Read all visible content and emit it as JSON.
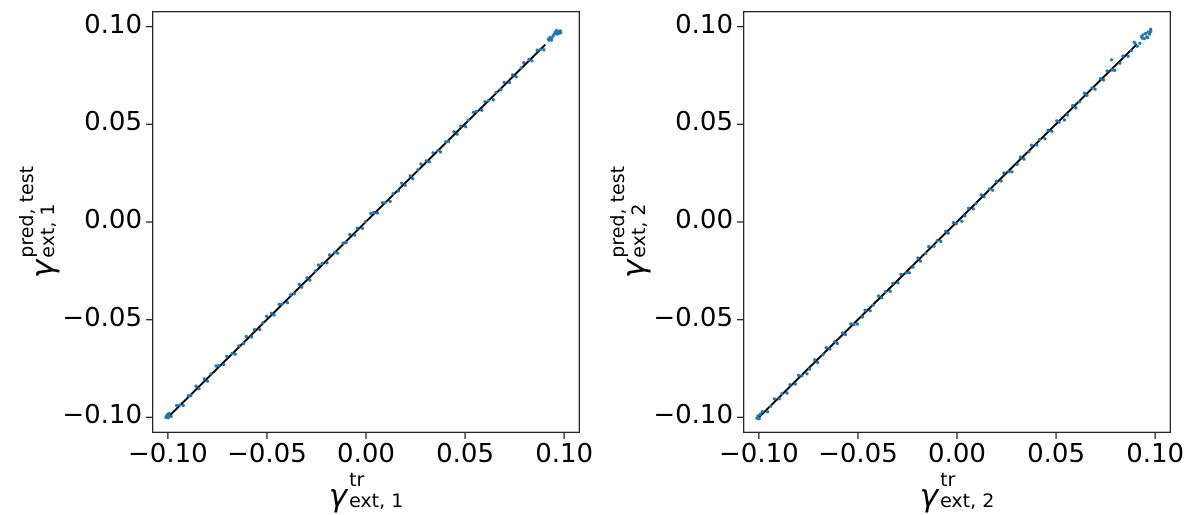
{
  "figure": {
    "background": "#ffffff"
  },
  "chart_data": [
    {
      "type": "scatter",
      "title": "",
      "xlabel": {
        "symbol": "γ",
        "sup": "tr",
        "sub": "ext, 1"
      },
      "ylabel": {
        "symbol": "γ",
        "sup": "pred, test",
        "sub": "ext, 1"
      },
      "xlim": [
        -0.108,
        0.108
      ],
      "ylim": [
        -0.108,
        0.108
      ],
      "grid": false,
      "legend": null,
      "xticks": [
        -0.1,
        -0.05,
        0.0,
        0.05,
        0.1
      ],
      "xtick_labels": [
        "−0.10",
        "−0.05",
        "0.00",
        "0.05",
        "0.10"
      ],
      "yticks": [
        -0.1,
        -0.05,
        0.0,
        0.05,
        0.1
      ],
      "ytick_labels": [
        "−0.10",
        "−0.05",
        "0.00",
        "0.05",
        "0.10"
      ],
      "axes_color": "#262626",
      "marker": {
        "color": "#1f77b4",
        "radius": 1.6
      },
      "line": {
        "color": "#000000",
        "width": 2,
        "endpoints": [
          [
            -1005,
            -1005
          ],
          [
            905,
            908
          ]
        ]
      },
      "points_scale": 0.0001,
      "points": [
        [
          -998,
          -989
        ],
        [
          -983,
          -995
        ],
        [
          -956,
          -940
        ],
        [
          -940,
          -937
        ],
        [
          -922,
          -939
        ],
        [
          -897,
          -889
        ],
        [
          -884,
          -889
        ],
        [
          -858,
          -840
        ],
        [
          -843,
          -853
        ],
        [
          -816,
          -803
        ],
        [
          -800,
          -815
        ],
        [
          -782,
          -777
        ],
        [
          -757,
          -737
        ],
        [
          -744,
          -735
        ],
        [
          -718,
          -730
        ],
        [
          -703,
          -687
        ],
        [
          -676,
          -673
        ],
        [
          -660,
          -677
        ],
        [
          -642,
          -634
        ],
        [
          -617,
          -622
        ],
        [
          -604,
          -586
        ],
        [
          -578,
          -588
        ],
        [
          -563,
          -550
        ],
        [
          -536,
          -551
        ],
        [
          -520,
          -515
        ],
        [
          -502,
          -482
        ],
        [
          -477,
          -468
        ],
        [
          -464,
          -476
        ],
        [
          -438,
          -422
        ],
        [
          -423,
          -420
        ],
        [
          -396,
          -413
        ],
        [
          -380,
          -372
        ],
        [
          -362,
          -367
        ],
        [
          -337,
          -319
        ],
        [
          -324,
          -334
        ],
        [
          -298,
          -285
        ],
        [
          -283,
          -298
        ],
        [
          -256,
          -251
        ],
        [
          -240,
          -220
        ],
        [
          -222,
          -213
        ],
        [
          -197,
          -209
        ],
        [
          -184,
          -168
        ],
        [
          -158,
          -155
        ],
        [
          -143,
          -160
        ],
        [
          -116,
          -108
        ],
        [
          -100,
          -105
        ],
        [
          -82,
          -64
        ],
        [
          -57,
          -67
        ],
        [
          -44,
          -31
        ],
        [
          -18,
          -33
        ],
        [
          -3,
          2
        ],
        [
          24,
          44
        ],
        [
          40,
          49
        ],
        [
          58,
          46
        ],
        [
          83,
          99
        ],
        [
          96,
          99
        ],
        [
          122,
          105
        ],
        [
          137,
          145
        ],
        [
          164,
          159
        ],
        [
          180,
          198
        ],
        [
          198,
          188
        ],
        [
          223,
          236
        ],
        [
          236,
          221
        ],
        [
          262,
          267
        ],
        [
          277,
          297
        ],
        [
          304,
          313
        ],
        [
          320,
          308
        ],
        [
          338,
          354
        ],
        [
          363,
          366
        ],
        [
          376,
          359
        ],
        [
          402,
          410
        ],
        [
          417,
          412
        ],
        [
          444,
          462
        ],
        [
          460,
          450
        ],
        [
          478,
          491
        ],
        [
          503,
          488
        ],
        [
          516,
          521
        ],
        [
          542,
          562
        ],
        [
          557,
          566
        ],
        [
          584,
          572
        ],
        [
          600,
          616
        ],
        [
          618,
          621
        ],
        [
          643,
          626
        ],
        [
          656,
          664
        ],
        [
          682,
          677
        ],
        [
          697,
          715
        ],
        [
          724,
          714
        ],
        [
          740,
          753
        ],
        [
          758,
          743
        ],
        [
          783,
          788
        ],
        [
          796,
          816
        ],
        [
          822,
          831
        ],
        [
          837,
          825
        ],
        [
          864,
          880
        ],
        [
          880,
          883
        ],
        [
          898,
          881
        ],
        [
          923,
          931
        ],
        [
          936,
          931
        ],
        [
          962,
          980
        ],
        [
          977,
          967
        ],
        [
          -1010,
          -1000
        ],
        [
          -1006,
          -992
        ],
        [
          -1002,
          -986
        ],
        [
          -998,
          -1002
        ],
        [
          -994,
          -980
        ],
        [
          920,
          935
        ],
        [
          928,
          944
        ],
        [
          936,
          940
        ],
        [
          944,
          952
        ],
        [
          950,
          962
        ],
        [
          955,
          972
        ],
        [
          960,
          968
        ],
        [
          965,
          962
        ],
        [
          970,
          966
        ],
        [
          975,
          974
        ],
        [
          980,
          978
        ],
        [
          983,
          970
        ]
      ]
    },
    {
      "type": "scatter",
      "title": "",
      "xlabel": {
        "symbol": "γ",
        "sup": "tr",
        "sub": "ext, 2"
      },
      "ylabel": {
        "symbol": "γ",
        "sup": "pred, test",
        "sub": "ext, 2"
      },
      "xlim": [
        -0.108,
        0.108
      ],
      "ylim": [
        -0.108,
        0.108
      ],
      "grid": false,
      "legend": null,
      "xticks": [
        -0.1,
        -0.05,
        0.0,
        0.05,
        0.1
      ],
      "xtick_labels": [
        "−0.10",
        "−0.05",
        "0.00",
        "0.05",
        "0.10"
      ],
      "yticks": [
        -0.1,
        -0.05,
        0.0,
        0.05,
        0.1
      ],
      "ytick_labels": [
        "−0.10",
        "−0.05",
        "0.00",
        "0.05",
        "0.10"
      ],
      "axes_color": "#262626",
      "marker": {
        "color": "#1f77b4",
        "radius": 1.6
      },
      "line": {
        "color": "#000000",
        "width": 2,
        "endpoints": [
          [
            -1005,
            -1005
          ],
          [
            908,
            910
          ]
        ]
      },
      "points_scale": 0.0001,
      "points": [
        [
          -998,
          -1007
        ],
        [
          -983,
          -971
        ],
        [
          -956,
          -972
        ],
        [
          -940,
          -943
        ],
        [
          -922,
          -905
        ],
        [
          -897,
          -905
        ],
        [
          -884,
          -879
        ],
        [
          -858,
          -876
        ],
        [
          -843,
          -833
        ],
        [
          -816,
          -829
        ],
        [
          -800,
          -785
        ],
        [
          -782,
          -787
        ],
        [
          -757,
          -777
        ],
        [
          -744,
          -753
        ],
        [
          -718,
          -706
        ],
        [
          -703,
          -719
        ],
        [
          -676,
          -679
        ],
        [
          -660,
          -643
        ],
        [
          -642,
          -650
        ],
        [
          -617,
          -612
        ],
        [
          -604,
          -622
        ],
        [
          -578,
          -568
        ],
        [
          -563,
          -576
        ],
        [
          -536,
          -521
        ],
        [
          -520,
          -525
        ],
        [
          -502,
          -522
        ],
        [
          -477,
          -486
        ],
        [
          -464,
          -452
        ],
        [
          -438,
          -454
        ],
        [
          -423,
          -426
        ],
        [
          -396,
          -379
        ],
        [
          -380,
          -388
        ],
        [
          -362,
          -357
        ],
        [
          -337,
          -355
        ],
        [
          -324,
          -314
        ],
        [
          -298,
          -311
        ],
        [
          -283,
          -268
        ],
        [
          -256,
          -261
        ],
        [
          -240,
          -260
        ],
        [
          -222,
          -231
        ],
        [
          -197,
          -185
        ],
        [
          -184,
          -200
        ],
        [
          -158,
          -161
        ],
        [
          -143,
          -126
        ],
        [
          -116,
          -124
        ],
        [
          -100,
          -95
        ],
        [
          -82,
          -100
        ],
        [
          -57,
          -47
        ],
        [
          -44,
          -57
        ],
        [
          -18,
          -3
        ],
        [
          -3,
          -8
        ],
        [
          24,
          4
        ],
        [
          40,
          31
        ],
        [
          58,
          70
        ],
        [
          83,
          67
        ],
        [
          96,
          93
        ],
        [
          122,
          139
        ],
        [
          137,
          129
        ],
        [
          164,
          169
        ],
        [
          180,
          162
        ],
        [
          198,
          208
        ],
        [
          223,
          210
        ],
        [
          236,
          251
        ],
        [
          262,
          257
        ],
        [
          277,
          257
        ],
        [
          304,
          295
        ],
        [
          320,
          332
        ],
        [
          338,
          322
        ],
        [
          363,
          360
        ],
        [
          376,
          393
        ],
        [
          402,
          394
        ],
        [
          417,
          422
        ],
        [
          444,
          426
        ],
        [
          460,
          470
        ],
        [
          478,
          465
        ],
        [
          503,
          518
        ],
        [
          516,
          511
        ],
        [
          542,
          522
        ],
        [
          557,
          548
        ],
        [
          584,
          596
        ],
        [
          600,
          584
        ],
        [
          618,
          615
        ],
        [
          643,
          660
        ],
        [
          656,
          648
        ],
        [
          682,
          687
        ],
        [
          697,
          679
        ],
        [
          724,
          734
        ],
        [
          740,
          727
        ],
        [
          758,
          773
        ],
        [
          783,
          778
        ],
        [
          796,
          776
        ],
        [
          822,
          813
        ],
        [
          837,
          849
        ],
        [
          864,
          848
        ],
        [
          880,
          877
        ],
        [
          898,
          915
        ],
        [
          923,
          915
        ],
        [
          936,
          941
        ],
        [
          962,
          944
        ],
        [
          977,
          987
        ],
        [
          -1010,
          -1004
        ],
        [
          -1005,
          -993
        ],
        [
          -999,
          -1007
        ],
        [
          -993,
          -985
        ],
        [
          780,
          830
        ],
        [
          895,
          920
        ],
        [
          910,
          900
        ],
        [
          930,
          948
        ],
        [
          938,
          958
        ],
        [
          945,
          938
        ],
        [
          952,
          965
        ],
        [
          958,
          948
        ],
        [
          965,
          972
        ],
        [
          972,
          962
        ],
        [
          978,
          975
        ]
      ]
    }
  ]
}
